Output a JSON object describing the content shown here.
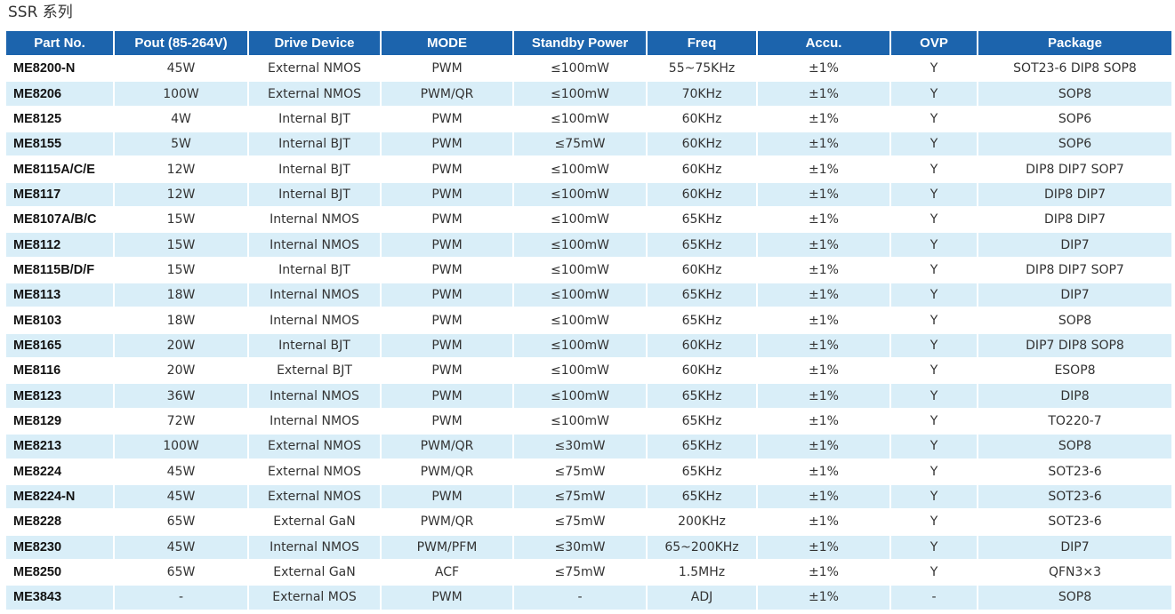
{
  "title": "SSR 系列",
  "columns": [
    "Part No.",
    "Pout (85-264V)",
    "Drive Device",
    "MODE",
    "Standby Power",
    "Freq",
    "Accu.",
    "OVP",
    "Package"
  ],
  "rows": [
    [
      "ME8200-N",
      "45W",
      "External NMOS",
      "PWM",
      "≤100mW",
      "55~75KHz",
      "±1%",
      "Y",
      "SOT23-6 DIP8 SOP8"
    ],
    [
      "ME8206",
      "100W",
      "External NMOS",
      "PWM/QR",
      "≤100mW",
      "70KHz",
      "±1%",
      "Y",
      "SOP8"
    ],
    [
      "ME8125",
      "4W",
      "Internal BJT",
      "PWM",
      "≤100mW",
      "60KHz",
      "±1%",
      "Y",
      "SOP6"
    ],
    [
      "ME8155",
      "5W",
      "Internal BJT",
      "PWM",
      "≤75mW",
      "60KHz",
      "±1%",
      "Y",
      "SOP6"
    ],
    [
      "ME8115A/C/E",
      "12W",
      "Internal BJT",
      "PWM",
      "≤100mW",
      "60KHz",
      "±1%",
      "Y",
      "DIP8 DIP7 SOP7"
    ],
    [
      "ME8117",
      "12W",
      "Internal BJT",
      "PWM",
      "≤100mW",
      "60KHz",
      "±1%",
      "Y",
      "DIP8 DIP7"
    ],
    [
      "ME8107A/B/C",
      "15W",
      "Internal NMOS",
      "PWM",
      "≤100mW",
      "65KHz",
      "±1%",
      "Y",
      "DIP8 DIP7"
    ],
    [
      "ME8112",
      "15W",
      "Internal NMOS",
      "PWM",
      "≤100mW",
      "65KHz",
      "±1%",
      "Y",
      "DIP7"
    ],
    [
      "ME8115B/D/F",
      "15W",
      "Internal BJT",
      "PWM",
      "≤100mW",
      "60KHz",
      "±1%",
      "Y",
      "DIP8 DIP7 SOP7"
    ],
    [
      "ME8113",
      "18W",
      "Internal NMOS",
      "PWM",
      "≤100mW",
      "65KHz",
      "±1%",
      "Y",
      "DIP7"
    ],
    [
      "ME8103",
      "18W",
      "Internal NMOS",
      "PWM",
      "≤100mW",
      "65KHz",
      "±1%",
      "Y",
      "SOP8"
    ],
    [
      "ME8165",
      "20W",
      "Internal BJT",
      "PWM",
      "≤100mW",
      "60KHz",
      "±1%",
      "Y",
      "DIP7 DIP8 SOP8"
    ],
    [
      "ME8116",
      "20W",
      "External BJT",
      "PWM",
      "≤100mW",
      "60KHz",
      "±1%",
      "Y",
      "ESOP8"
    ],
    [
      "ME8123",
      "36W",
      "Internal NMOS",
      "PWM",
      "≤100mW",
      "65KHz",
      "±1%",
      "Y",
      "DIP8"
    ],
    [
      "ME8129",
      "72W",
      "Internal NMOS",
      "PWM",
      "≤100mW",
      "65KHz",
      "±1%",
      "Y",
      "TO220-7"
    ],
    [
      "ME8213",
      "100W",
      "External NMOS",
      "PWM/QR",
      "≤30mW",
      "65KHz",
      "±1%",
      "Y",
      "SOP8"
    ],
    [
      "ME8224",
      "45W",
      "External NMOS",
      "PWM/QR",
      "≤75mW",
      "65KHz",
      "±1%",
      "Y",
      "SOT23-6"
    ],
    [
      "ME8224-N",
      "45W",
      "External NMOS",
      "PWM",
      "≤75mW",
      "65KHz",
      "±1%",
      "Y",
      "SOT23-6"
    ],
    [
      "ME8228",
      "65W",
      "External GaN",
      "PWM/QR",
      "≤75mW",
      "200KHz",
      "±1%",
      "Y",
      "SOT23-6"
    ],
    [
      "ME8230",
      "45W",
      "Internal NMOS",
      "PWM/PFM",
      "≤30mW",
      "65~200KHz",
      "±1%",
      "Y",
      "DIP7"
    ],
    [
      "ME8250",
      "65W",
      "External GaN",
      "ACF",
      "≤75mW",
      "1.5MHz",
      "±1%",
      "Y",
      "QFN3×3"
    ],
    [
      "ME3843",
      "-",
      "External MOS",
      "PWM",
      "-",
      "ADJ",
      "±1%",
      "-",
      "SOP8"
    ]
  ],
  "colors": {
    "header_bg": "#1c64ad",
    "header_text": "#ffffff",
    "stripe_bg": "#d9eef8",
    "row_bg": "#ffffff"
  }
}
